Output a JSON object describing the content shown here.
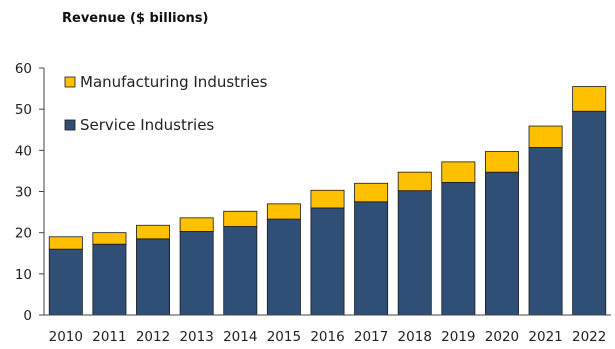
{
  "chart_data": {
    "type": "bar",
    "stacked": true,
    "title": "Revenue ($ billions)",
    "xlabel": "",
    "ylabel": "",
    "ylim": [
      0,
      60
    ],
    "yticks": [
      0,
      10,
      20,
      30,
      40,
      50,
      60
    ],
    "grid": false,
    "legend_position": "top-left",
    "categories": [
      "2010",
      "2011",
      "2012",
      "2013",
      "2014",
      "2015",
      "2016",
      "2017",
      "2018",
      "2019",
      "2020",
      "2021",
      "2022"
    ],
    "series": [
      {
        "name": "Service Industries",
        "color": "#2f4f77",
        "values": [
          16,
          17.2,
          18.5,
          20.3,
          21.5,
          23.3,
          26,
          27.5,
          30.2,
          32.2,
          34.7,
          40.7,
          49.5
        ]
      },
      {
        "name": "Manufacturing Industries",
        "color": "#ffc000",
        "values": [
          3,
          2.8,
          3.3,
          3.3,
          3.7,
          3.7,
          4.3,
          4.5,
          4.5,
          5,
          5,
          5.2,
          6
        ]
      }
    ]
  }
}
